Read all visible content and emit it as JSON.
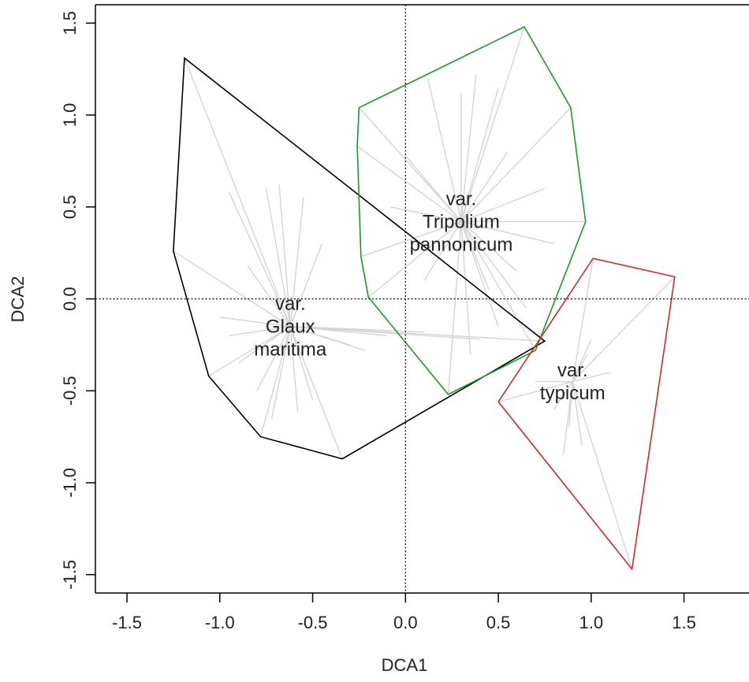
{
  "chart_data": {
    "type": "scatter",
    "title": "",
    "xlabel": "DCA1",
    "ylabel": "DCA2",
    "xlim": [
      -1.67,
      1.85
    ],
    "ylim": [
      -1.6,
      1.6
    ],
    "x_ticks": [
      -1.5,
      -1.0,
      -0.5,
      0.0,
      0.5,
      1.0,
      1.5
    ],
    "x_tick_labels": [
      "-1.5",
      "-1.0",
      "-0.5",
      "0.0",
      "0.5",
      "1.0",
      "1.5"
    ],
    "y_ticks": [
      -1.5,
      -1.0,
      -0.5,
      0.0,
      0.5,
      1.0,
      1.5
    ],
    "y_tick_labels": [
      "-1.5",
      "-1.0",
      "-0.5",
      "0.0",
      "0.5",
      "1.0",
      "1.5"
    ],
    "reference_lines": {
      "x": 0,
      "y": 0,
      "style": "dotted"
    },
    "groups": [
      {
        "label_lines": [
          "var.",
          "Glaux",
          "maritima"
        ],
        "color": "#000000",
        "centroid": [
          -0.62,
          -0.15
        ],
        "hull": [
          [
            -1.19,
            1.31
          ],
          [
            0.75,
            -0.23
          ],
          [
            -0.34,
            -0.87
          ],
          [
            -0.78,
            -0.75
          ],
          [
            -1.06,
            -0.42
          ],
          [
            -1.25,
            0.26
          ]
        ],
        "spider_points": [
          [
            -1.19,
            1.31
          ],
          [
            0.75,
            -0.23
          ],
          [
            -0.34,
            -0.87
          ],
          [
            -0.78,
            -0.75
          ],
          [
            -1.06,
            -0.42
          ],
          [
            -1.25,
            0.26
          ],
          [
            -0.95,
            0.58
          ],
          [
            -0.75,
            0.6
          ],
          [
            -0.68,
            0.62
          ],
          [
            -0.85,
            0.18
          ],
          [
            -1.0,
            -0.1
          ],
          [
            -0.95,
            -0.2
          ],
          [
            -0.9,
            -0.35
          ],
          [
            -0.8,
            -0.5
          ],
          [
            -0.72,
            -0.65
          ],
          [
            -0.58,
            -0.62
          ],
          [
            -0.5,
            -0.55
          ],
          [
            -0.3,
            -0.25
          ],
          [
            -0.22,
            -0.28
          ],
          [
            -0.1,
            -0.2
          ],
          [
            0.1,
            -0.18
          ],
          [
            0.4,
            -0.22
          ],
          [
            -0.45,
            0.3
          ],
          [
            -0.55,
            0.55
          ]
        ]
      },
      {
        "label_lines": [
          "var.",
          "Tripolium",
          "pannonicum"
        ],
        "color": "#1a9a2a",
        "centroid": [
          0.3,
          0.42
        ],
        "hull": [
          [
            -0.25,
            1.04
          ],
          [
            0.64,
            1.48
          ],
          [
            0.89,
            1.04
          ],
          [
            0.97,
            0.42
          ],
          [
            0.7,
            -0.28
          ],
          [
            0.23,
            -0.52
          ],
          [
            -0.2,
            0.01
          ],
          [
            -0.24,
            0.23
          ],
          [
            -0.26,
            0.83
          ]
        ],
        "spider_points": [
          [
            -0.25,
            1.04
          ],
          [
            0.64,
            1.48
          ],
          [
            0.89,
            1.04
          ],
          [
            0.97,
            0.42
          ],
          [
            0.7,
            -0.28
          ],
          [
            0.23,
            -0.52
          ],
          [
            -0.2,
            0.01
          ],
          [
            -0.24,
            0.23
          ],
          [
            -0.26,
            0.83
          ],
          [
            0.12,
            1.2
          ],
          [
            0.38,
            1.22
          ],
          [
            0.5,
            1.15
          ],
          [
            0.3,
            1.12
          ],
          [
            0.0,
            0.78
          ],
          [
            -0.08,
            0.5
          ],
          [
            0.1,
            0.1
          ],
          [
            0.35,
            -0.3
          ],
          [
            0.5,
            -0.15
          ],
          [
            0.6,
            0.15
          ],
          [
            0.75,
            0.6
          ],
          [
            0.8,
            0.3
          ],
          [
            0.55,
            0.8
          ],
          [
            0.65,
            -0.05
          ],
          [
            0.45,
            0.05
          ]
        ]
      },
      {
        "label_lines": [
          "var.",
          "typicum"
        ],
        "color": "#d62728",
        "centroid": [
          0.9,
          -0.45
        ],
        "hull": [
          [
            1.01,
            0.22
          ],
          [
            1.45,
            0.12
          ],
          [
            1.22,
            -1.47
          ],
          [
            0.5,
            -0.56
          ]
        ],
        "spider_points": [
          [
            1.01,
            0.22
          ],
          [
            1.45,
            0.12
          ],
          [
            1.22,
            -1.47
          ],
          [
            0.5,
            -0.56
          ],
          [
            0.8,
            -0.6
          ],
          [
            0.85,
            -0.85
          ],
          [
            0.95,
            -0.8
          ],
          [
            1.0,
            -0.22
          ],
          [
            1.1,
            -0.4
          ],
          [
            0.7,
            -0.45
          ],
          [
            0.98,
            -0.3
          ],
          [
            0.88,
            -0.7
          ]
        ]
      }
    ]
  }
}
